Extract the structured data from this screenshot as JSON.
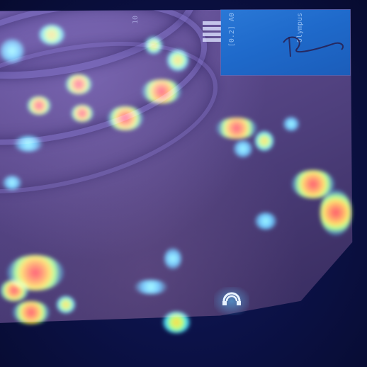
{
  "image": {
    "kind": "endoscopy frame with attention heatmap overlay",
    "overlay_text_left": "[0.2] A0",
    "overlay_text_right": "Olympus",
    "scale_label": "10",
    "colors": {
      "background": "#0a0f3a",
      "tissue": "#5d4a8d",
      "inset": "#1f6acb",
      "heat_high": "#ff2a00",
      "heat_mid": "#ffe000",
      "heat_low": "#40e0ff"
    },
    "icons": [
      "logo-icon"
    ]
  }
}
